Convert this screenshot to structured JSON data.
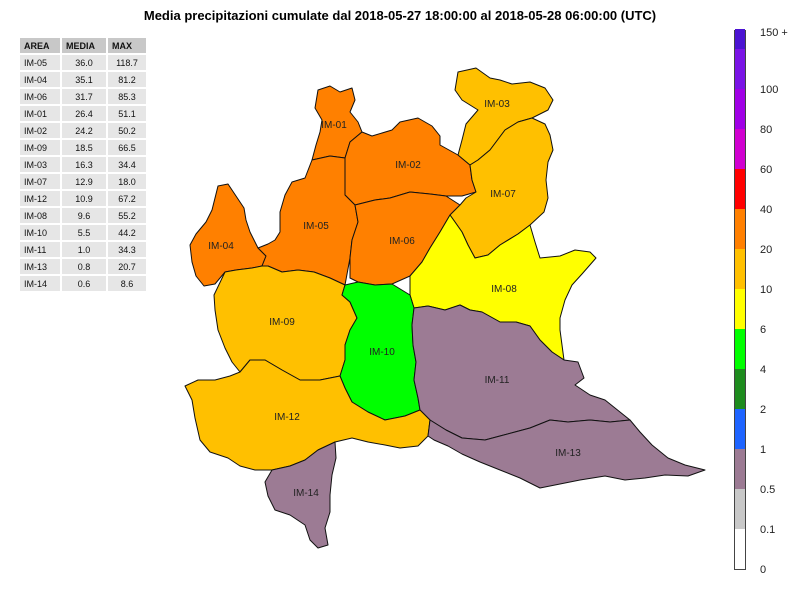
{
  "title": "Media precipitazioni cumulate dal 2018-05-27 18:00:00 al 2018-05-28 06:00:00  (UTC)",
  "table": {
    "headers": [
      "AREA",
      "MEDIA",
      "MAX"
    ],
    "rows": [
      [
        "IM-05",
        "36.0",
        "118.7"
      ],
      [
        "IM-04",
        "35.1",
        "81.2"
      ],
      [
        "IM-06",
        "31.7",
        "85.3"
      ],
      [
        "IM-01",
        "26.4",
        "51.1"
      ],
      [
        "IM-02",
        "24.2",
        "50.2"
      ],
      [
        "IM-09",
        "18.5",
        "66.5"
      ],
      [
        "IM-03",
        "16.3",
        "34.4"
      ],
      [
        "IM-07",
        "12.9",
        "18.0"
      ],
      [
        "IM-12",
        "10.9",
        "67.2"
      ],
      [
        "IM-08",
        "9.6",
        "55.2"
      ],
      [
        "IM-10",
        "5.5",
        "44.2"
      ],
      [
        "IM-11",
        "1.0",
        "34.3"
      ],
      [
        "IM-13",
        "0.8",
        "20.7"
      ],
      [
        "IM-14",
        "0.6",
        "8.6"
      ]
    ]
  },
  "regions": [
    {
      "id": "IM-01",
      "color": "#ff8000"
    },
    {
      "id": "IM-02",
      "color": "#ff8000"
    },
    {
      "id": "IM-03",
      "color": "#ffc000"
    },
    {
      "id": "IM-04",
      "color": "#ff8000"
    },
    {
      "id": "IM-05",
      "color": "#ff8000"
    },
    {
      "id": "IM-06",
      "color": "#ff8000"
    },
    {
      "id": "IM-07",
      "color": "#ffc000"
    },
    {
      "id": "IM-08",
      "color": "#ffff00"
    },
    {
      "id": "IM-09",
      "color": "#ffc000"
    },
    {
      "id": "IM-10",
      "color": "#00ff00"
    },
    {
      "id": "IM-11",
      "color": "#9c7b94"
    },
    {
      "id": "IM-12",
      "color": "#ffc000"
    },
    {
      "id": "IM-13",
      "color": "#9c7b94"
    },
    {
      "id": "IM-14",
      "color": "#9c7b94"
    }
  ],
  "legend": {
    "labels": [
      "150 +",
      "100",
      "80",
      "60",
      "40",
      "20",
      "10",
      "6",
      "4",
      "2",
      "1",
      "0.5",
      "0.1",
      "0"
    ],
    "colors": [
      "#ffffff",
      "#c8c8c8",
      "#9c7b94",
      "#1e64ff",
      "#1e8c1e",
      "#00ff00",
      "#ffff00",
      "#ffc000",
      "#ff8000",
      "#ff0000",
      "#d000d0",
      "#a000e6",
      "#7a14e6",
      "#4b14d2"
    ]
  }
}
